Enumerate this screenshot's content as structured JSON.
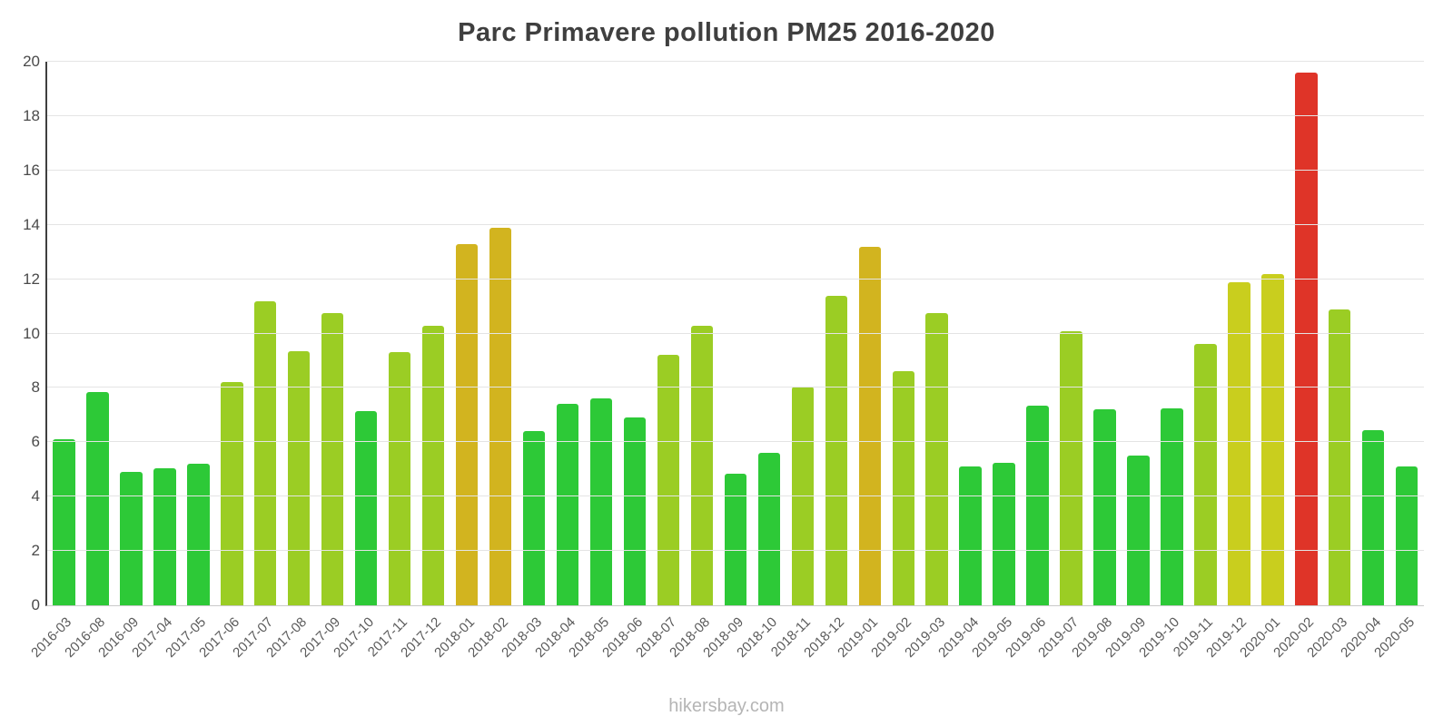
{
  "chart_data": {
    "type": "bar",
    "title": "Parc Primavere pollution PM25 2016-2020",
    "xlabel": "",
    "ylabel": "",
    "ylim": [
      0,
      20
    ],
    "ytick_step": 2,
    "grid": true,
    "legend": false,
    "categories": [
      "2016-03",
      "2016-08",
      "2016-09",
      "2017-04",
      "2017-05",
      "2017-06",
      "2017-07",
      "2017-08",
      "2017-09",
      "2017-10",
      "2017-11",
      "2017-12",
      "2018-01",
      "2018-02",
      "2018-03",
      "2018-04",
      "2018-05",
      "2018-06",
      "2018-07",
      "2018-08",
      "2018-09",
      "2018-10",
      "2018-11",
      "2018-12",
      "2019-01",
      "2019-02",
      "2019-03",
      "2019-04",
      "2019-05",
      "2019-06",
      "2019-07",
      "2019-08",
      "2019-09",
      "2019-10",
      "2019-11",
      "2019-12",
      "2020-01",
      "2020-02",
      "2020-03",
      "2020-04",
      "2020-05"
    ],
    "values": [
      6.1,
      7.85,
      4.9,
      5.05,
      5.2,
      8.2,
      11.2,
      9.35,
      10.75,
      7.15,
      9.3,
      10.3,
      13.3,
      13.9,
      6.4,
      7.4,
      7.6,
      6.9,
      9.2,
      10.3,
      4.85,
      5.6,
      8.05,
      11.4,
      13.2,
      8.6,
      10.75,
      5.1,
      5.25,
      7.35,
      10.1,
      7.2,
      5.5,
      7.25,
      9.6,
      11.9,
      12.2,
      19.6,
      10.9,
      6.45,
      5.1
    ],
    "bar_colors": [
      "#2DC937",
      "#2DC937",
      "#2DC937",
      "#2DC937",
      "#2DC937",
      "#9BCD24",
      "#9BCD24",
      "#9BCD24",
      "#9BCD24",
      "#2DC937",
      "#9BCD24",
      "#9BCD24",
      "#D2B41F",
      "#D2B41F",
      "#2DC937",
      "#2DC937",
      "#2DC937",
      "#2DC937",
      "#9BCD24",
      "#9BCD24",
      "#2DC937",
      "#2DC937",
      "#9BCD24",
      "#9BCD24",
      "#D2B41F",
      "#9BCD24",
      "#9BCD24",
      "#2DC937",
      "#2DC937",
      "#2DC937",
      "#9BCD24",
      "#2DC937",
      "#2DC937",
      "#2DC937",
      "#9BCD24",
      "#C9CE1E",
      "#C9CE1E",
      "#DF3428",
      "#9BCD24",
      "#2DC937",
      "#2DC937"
    ]
  },
  "footer": {
    "text": "hikersbay.com"
  },
  "colors": {
    "title": "#3f3f3f",
    "axis": "#3f3f3f",
    "gridline": "#e4e4e4",
    "tick_label": "#4a4a4a",
    "x_label": "#5a5a5a",
    "footer": "#b5b5b5",
    "low": "#2DC937",
    "medium": "#9BCD24",
    "high": "#C9CE1E",
    "very_high": "#D2B41F",
    "extreme": "#DF3428"
  }
}
